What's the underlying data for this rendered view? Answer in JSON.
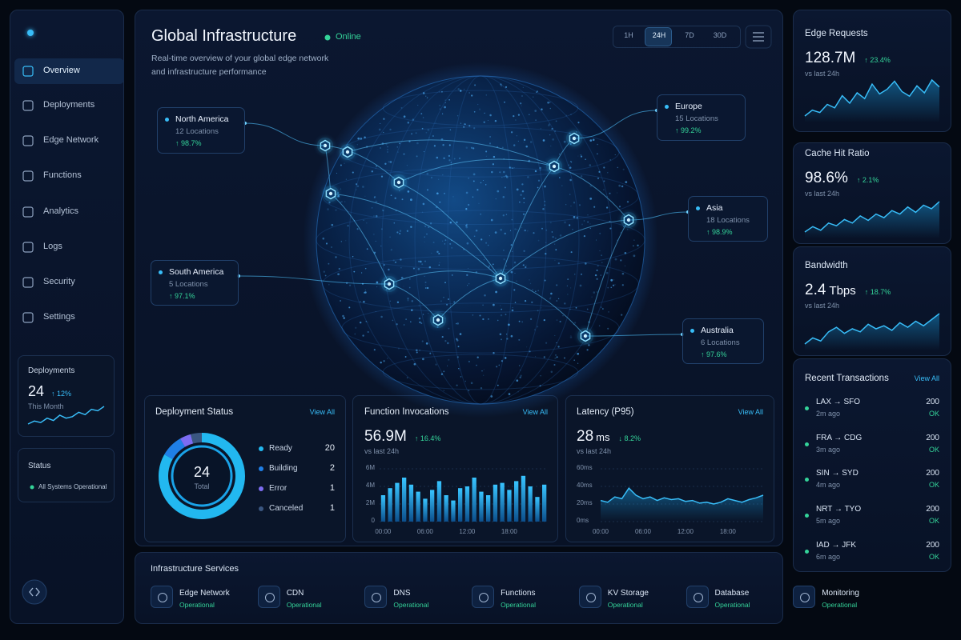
{
  "sidebar": {
    "nav": [
      "Overview",
      "Deployments",
      "Edge Network",
      "Functions",
      "Analytics",
      "Logs",
      "Security",
      "Settings"
    ],
    "deployments_card": {
      "title": "Deployments",
      "value": "24",
      "change": "↑ 12%",
      "period": "This Month",
      "trend": [
        3,
        4,
        3.5,
        5,
        4.2,
        6,
        5,
        5.5,
        7,
        6.2,
        8,
        7.5,
        9
      ]
    },
    "status_card": {
      "title": "Status",
      "text": "All Systems Operational"
    }
  },
  "header": {
    "title": "Global Infrastructure",
    "status": "Online",
    "subtitle": "Real-time overview of your global edge network and infrastructure performance",
    "ranges": [
      "1H",
      "24H",
      "7D",
      "30D"
    ]
  },
  "regions": [
    {
      "name": "North America",
      "locations": "12 Locations",
      "uptime": "↑ 98.7%"
    },
    {
      "name": "South America",
      "locations": "5 Locations",
      "uptime": "↑ 97.1%"
    },
    {
      "name": "Europe",
      "locations": "15 Locations",
      "uptime": "↑ 99.2%"
    },
    {
      "name": "Asia",
      "locations": "18 Locations",
      "uptime": "↑ 98.9%"
    },
    {
      "name": "Australia",
      "locations": "6 Locations",
      "uptime": "↑ 97.6%"
    }
  ],
  "edge_requests": {
    "title": "Edge Requests",
    "value": "128.7M",
    "change": "↑ 23.4%",
    "period": "vs last 24h",
    "trend": [
      3,
      4,
      3.6,
      5,
      4.4,
      6.5,
      5.2,
      7,
      6,
      8.5,
      6.8,
      7.6,
      9,
      7.2,
      6.4,
      8.2,
      7,
      9.2,
      8
    ]
  },
  "cache_hit_ratio": {
    "title": "Cache Hit Ratio",
    "value": "98.6%",
    "change": "↑ 2.1%",
    "period": "vs last 24h",
    "trend": [
      3,
      3.6,
      3.2,
      4,
      3.7,
      4.4,
      4,
      4.8,
      4.3,
      5,
      4.6,
      5.4,
      5,
      5.8,
      5.2,
      6,
      5.6,
      6.4
    ]
  },
  "bandwidth": {
    "title": "Bandwidth",
    "value": "2.4",
    "unit": "Tbps",
    "change": "↑ 18.7%",
    "period": "vs last 24h",
    "trend": [
      3,
      3.8,
      3.4,
      4.6,
      5.2,
      4.4,
      5,
      4.6,
      5.6,
      5,
      5.4,
      4.8,
      5.8,
      5.2,
      6,
      5.4,
      6.2,
      7
    ]
  },
  "deployment_status": {
    "title": "Deployment Status",
    "view_all": "View All",
    "total": 24,
    "total_label": "Total",
    "items": [
      {
        "name": "Ready",
        "value": 20,
        "color": "#22b8f0"
      },
      {
        "name": "Building",
        "value": 2,
        "color": "#1f7fe6"
      },
      {
        "name": "Error",
        "value": 1,
        "color": "#7c6cf2"
      },
      {
        "name": "Canceled",
        "value": 1,
        "color": "#3a5680"
      }
    ]
  },
  "function_invocations": {
    "title": "Function Invocations",
    "view_all": "View All",
    "value": "56.9M",
    "change": "↑ 16.4%",
    "period": "vs last 24h",
    "chart": {
      "type": "bar",
      "color": "#1aa3e8",
      "categories": [
        "00:00",
        null,
        null,
        null,
        null,
        null,
        "06:00",
        null,
        null,
        null,
        null,
        null,
        "12:00",
        null,
        null,
        null,
        null,
        null,
        "18:00",
        null,
        null,
        null,
        null,
        null
      ],
      "values": [
        3000000,
        3800000,
        4400000,
        5000000,
        4200000,
        3400000,
        2600000,
        3600000,
        4600000,
        3000000,
        2400000,
        3800000,
        4000000,
        5000000,
        3400000,
        3000000,
        4200000,
        4400000,
        3600000,
        4600000,
        5200000,
        4000000,
        2800000,
        4200000
      ],
      "ylim": [
        0,
        6000000
      ],
      "yticks": [
        0,
        {
          "value": 2000000,
          "label": "2M"
        },
        {
          "value": 4000000,
          "label": "4M"
        },
        {
          "value": 6000000,
          "label": "6M"
        }
      ]
    }
  },
  "latency": {
    "title": "Latency (P95)",
    "view_all": "View All",
    "value": "28",
    "unit": "ms",
    "change": "↓ 8.2%",
    "period": "vs last 24h",
    "chart": {
      "type": "line",
      "color": "#38bdf8",
      "categories": [
        "00:00",
        null,
        null,
        null,
        null,
        null,
        "06:00",
        null,
        null,
        null,
        null,
        null,
        "12:00",
        null,
        null,
        null,
        null,
        null,
        "18:00",
        null,
        null,
        null,
        null,
        null
      ],
      "values": [
        24,
        22,
        28,
        26,
        38,
        30,
        26,
        28,
        24,
        27,
        25,
        26,
        23,
        24,
        21,
        22,
        20,
        22,
        26,
        24,
        22,
        25,
        27,
        30
      ],
      "ylim": [
        0,
        60
      ],
      "yticks": [
        {
          "value": 0,
          "label": "0ms"
        },
        {
          "value": 20,
          "label": "20ms"
        },
        {
          "value": 40,
          "label": "40ms"
        },
        {
          "value": 60,
          "label": "60ms"
        }
      ]
    }
  },
  "transactions": {
    "title": "Recent Transactions",
    "view_all": "View All",
    "items": [
      {
        "route": "LAX → SFO",
        "time": "2m ago",
        "code": "200",
        "status": "OK"
      },
      {
        "route": "FRA → CDG",
        "time": "3m ago",
        "code": "200",
        "status": "OK"
      },
      {
        "route": "SIN → SYD",
        "time": "4m ago",
        "code": "200",
        "status": "OK"
      },
      {
        "route": "NRT → TYO",
        "time": "5m ago",
        "code": "200",
        "status": "OK"
      },
      {
        "route": "IAD → JFK",
        "time": "6m ago",
        "code": "200",
        "status": "OK"
      }
    ]
  },
  "services": {
    "title": "Infrastructure Services",
    "items": [
      {
        "name": "Edge Network",
        "status": "Operational"
      },
      {
        "name": "CDN",
        "status": "Operational"
      },
      {
        "name": "DNS",
        "status": "Operational"
      },
      {
        "name": "Functions",
        "status": "Operational"
      },
      {
        "name": "KV Storage",
        "status": "Operational"
      },
      {
        "name": "Database",
        "status": "Operational"
      },
      {
        "name": "Monitoring",
        "status": "Operational"
      }
    ]
  }
}
